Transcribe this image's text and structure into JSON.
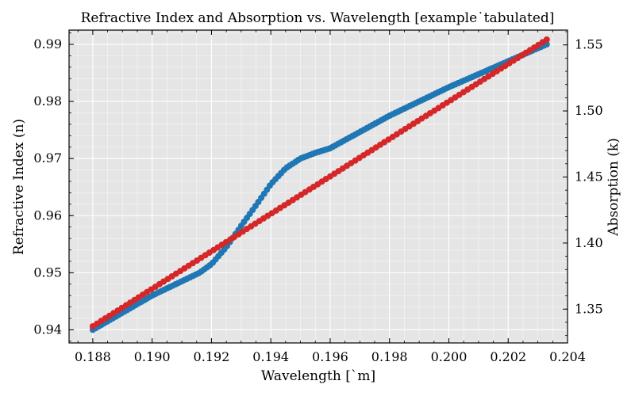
{
  "chart_data": {
    "type": "scatter",
    "title": "Refractive Index and Absorption vs. Wavelength [example˙tabulated]",
    "xlabel": "Wavelength [`m]",
    "ylabel": "Refractive Index (n)",
    "y2label": "Absorption (k)",
    "xlim": [
      0.1872,
      0.204
    ],
    "ylim": [
      0.9377,
      0.9925
    ],
    "y2lim": [
      1.3244,
      1.5612
    ],
    "x_ticks": [
      "0.188",
      "0.190",
      "0.192",
      "0.194",
      "0.196",
      "0.198",
      "0.200",
      "0.202",
      "0.204"
    ],
    "y_ticks": [
      "0.94",
      "0.95",
      "0.96",
      "0.97",
      "0.98",
      "0.99"
    ],
    "y2_ticks": [
      "1.35",
      "1.40",
      "1.45",
      "1.50",
      "1.55"
    ],
    "grid": true,
    "background": "#e5e5e5",
    "series": [
      {
        "axis": "left",
        "color": "#1f77b4",
        "x_start": 0.188,
        "x_end": 0.2033,
        "points": 160,
        "anchors": [
          [
            0.188,
            0.94
          ],
          [
            0.19,
            0.946
          ],
          [
            0.191,
            0.9485
          ],
          [
            0.1916,
            0.95
          ],
          [
            0.192,
            0.9515
          ],
          [
            0.1925,
            0.9545
          ],
          [
            0.193,
            0.9582
          ],
          [
            0.1935,
            0.9618
          ],
          [
            0.194,
            0.9655
          ],
          [
            0.1945,
            0.9683
          ],
          [
            0.195,
            0.97
          ],
          [
            0.1955,
            0.971
          ],
          [
            0.196,
            0.9718
          ],
          [
            0.198,
            0.9775
          ],
          [
            0.2,
            0.9825
          ],
          [
            0.2033,
            0.99
          ]
        ]
      },
      {
        "axis": "right",
        "color": "#d62728",
        "x_start": 0.188,
        "x_end": 0.2033,
        "points": 110,
        "y_start": 1.337,
        "y_end": 1.554
      }
    ]
  }
}
